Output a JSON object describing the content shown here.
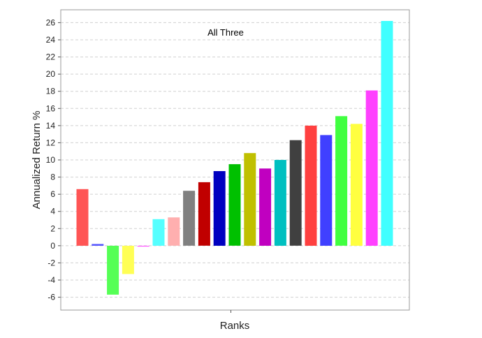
{
  "chart_data": {
    "type": "bar",
    "title": "All Three",
    "xlabel": "Ranks",
    "ylabel": "Annualized Return %",
    "ylim": [
      -7.5,
      27.5
    ],
    "yticks": [
      -6,
      -4,
      -2,
      0,
      2,
      4,
      6,
      8,
      10,
      12,
      14,
      16,
      18,
      20,
      22,
      24,
      26
    ],
    "grid": true,
    "legend": "none",
    "values": [
      6.6,
      0.2,
      -5.7,
      -3.3,
      -0.1,
      3.1,
      3.3,
      6.4,
      7.4,
      8.7,
      9.5,
      10.8,
      9.0,
      10.0,
      12.3,
      14.0,
      12.9,
      15.1,
      14.2,
      18.1,
      26.2
    ],
    "colors": [
      "#ff5555",
      "#5555ff",
      "#55ff55",
      "#ffff55",
      "#ff55ff",
      "#55ffff",
      "#ffafaf",
      "#808080",
      "#c00000",
      "#0000c0",
      "#00c000",
      "#c0c000",
      "#c000c0",
      "#00c0c0",
      "#404040",
      "#ff4040",
      "#4040ff",
      "#40ff40",
      "#ffff40",
      "#ff40ff",
      "#40ffff"
    ]
  }
}
